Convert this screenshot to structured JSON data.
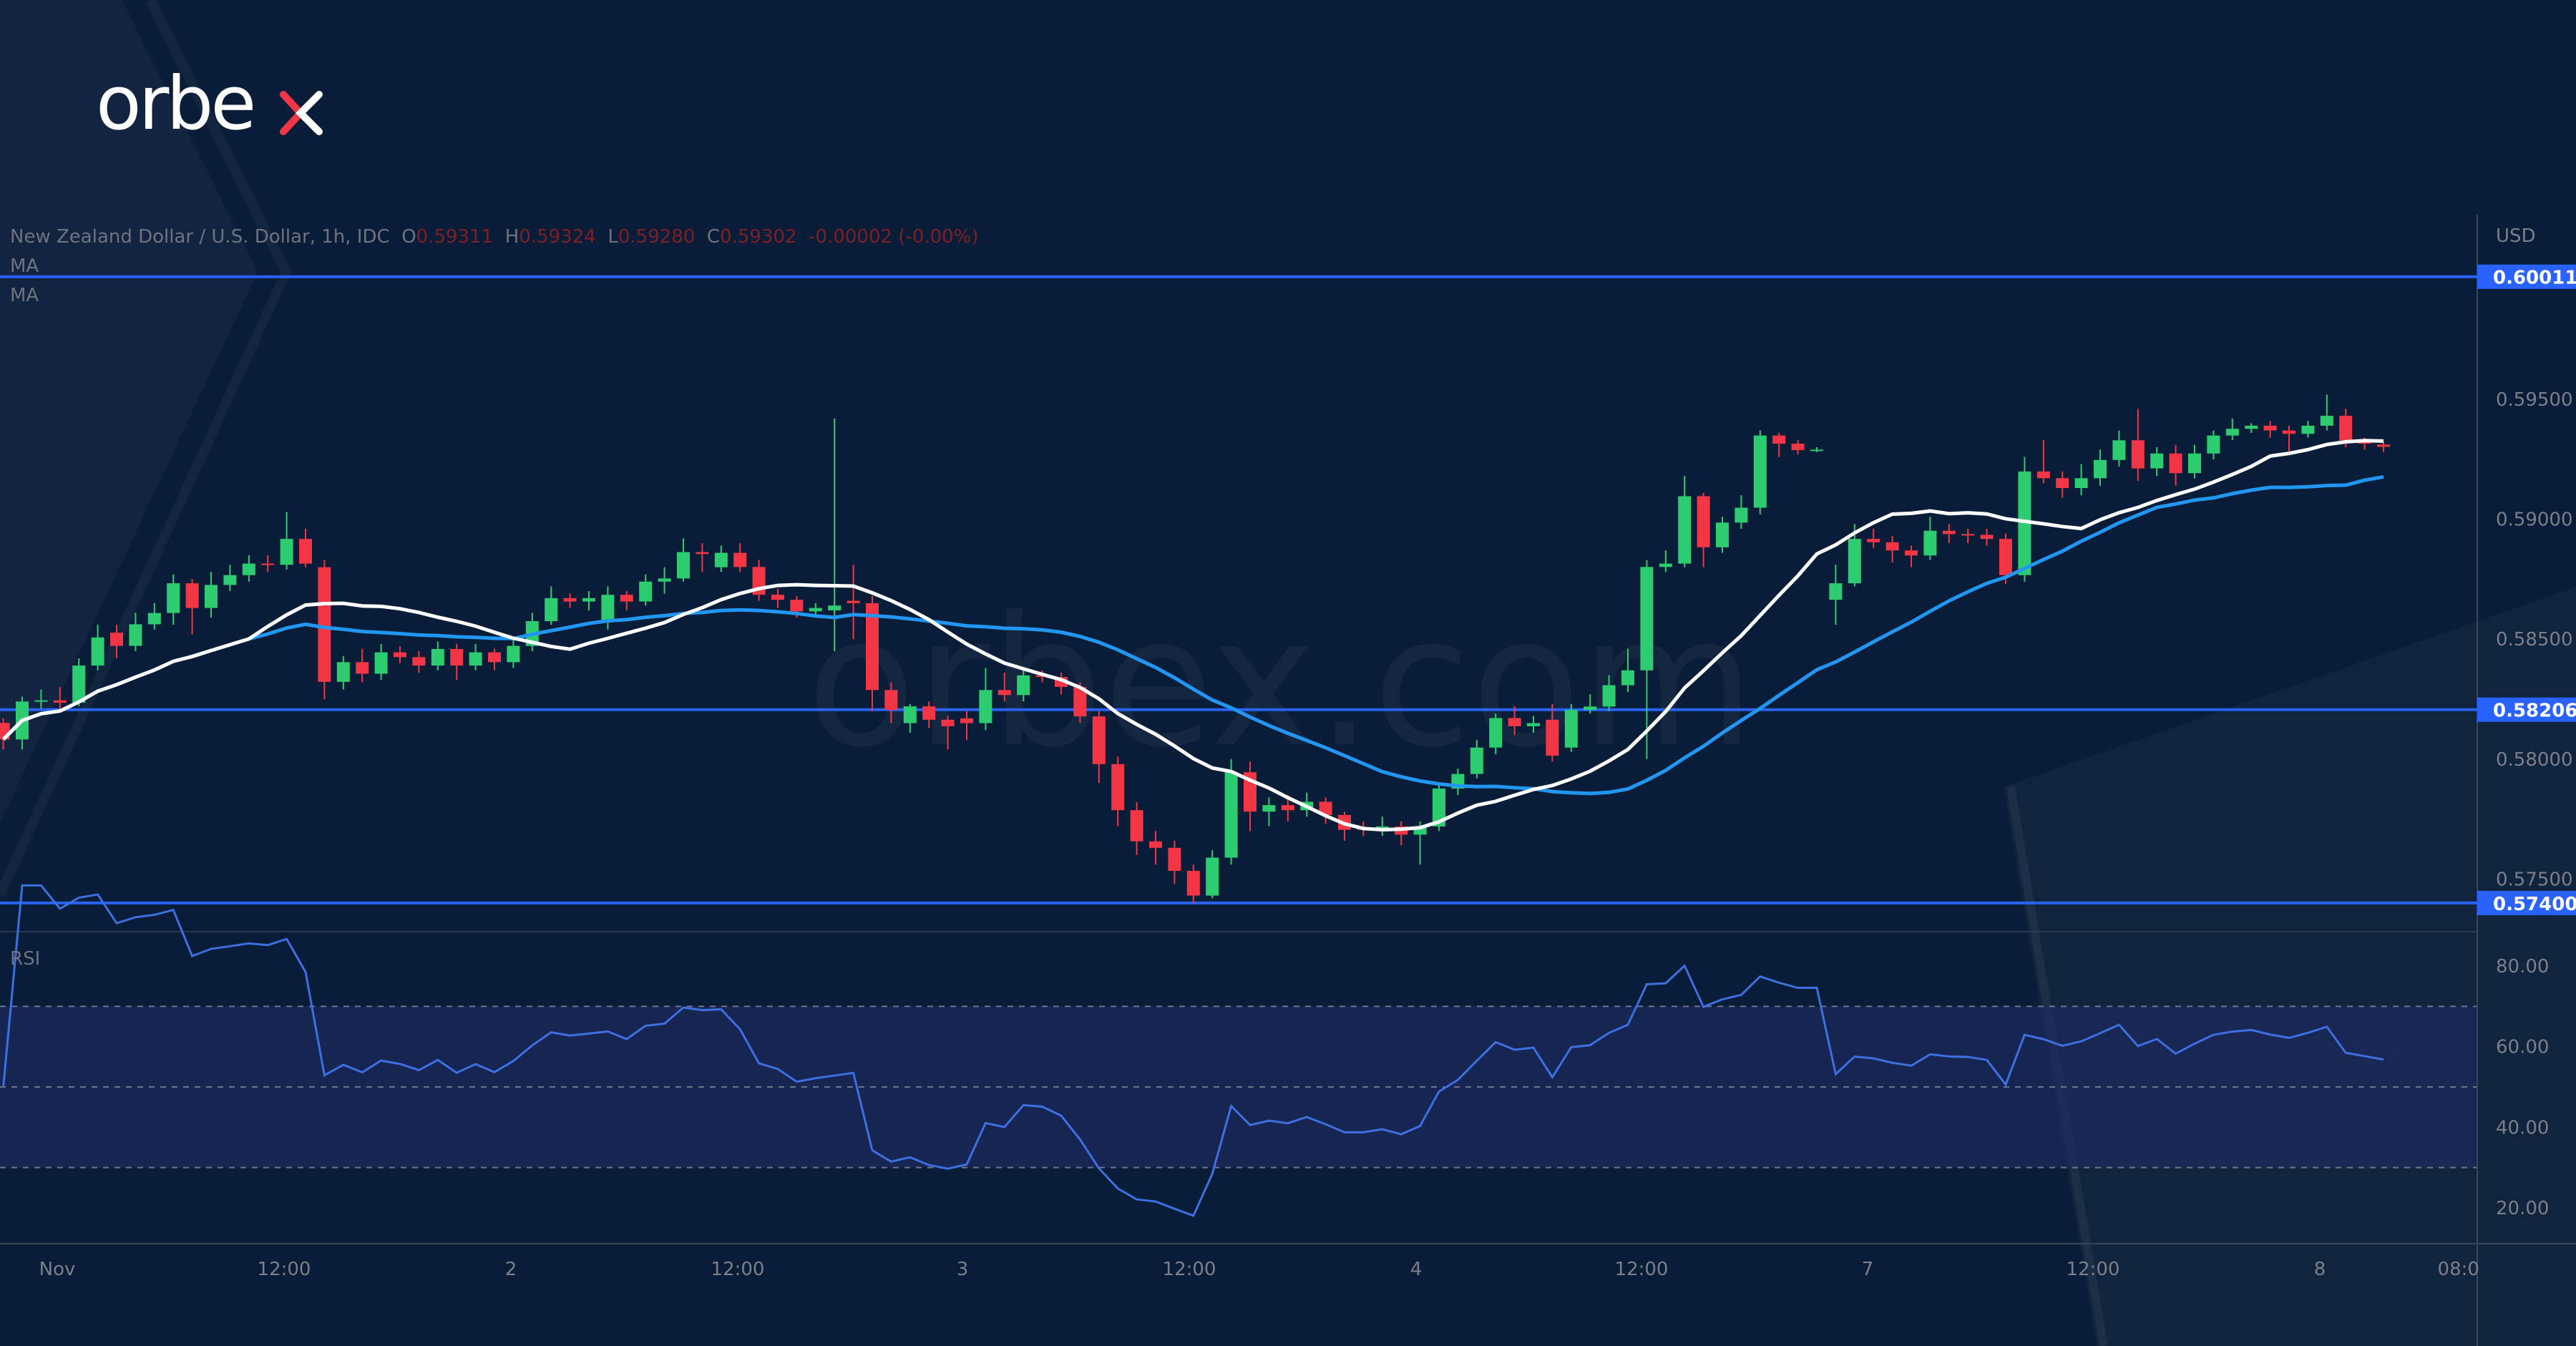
{
  "brand": {
    "logo_text": "orbex",
    "watermark": "orbex.com"
  },
  "legend": {
    "symbol": "New Zealand Dollar / U.S. Dollar, 1h, IDC",
    "open_label": "O",
    "open": "0.59311",
    "high_label": "H",
    "high": "0.59324",
    "low_label": "L",
    "low": "0.59280",
    "close_label": "C",
    "close": "0.59302",
    "change": "-0.00002 (-0.00%)",
    "ma1": "MA",
    "ma2": "MA"
  },
  "colors": {
    "background": "#0a1d38",
    "up": "#2ecc71",
    "down": "#f23645",
    "ma_fast": "#ffffff",
    "ma_slow": "#2196f3",
    "level": "#2962ff",
    "rsi": "#3d6fe0"
  },
  "chart_data": {
    "type": "candlestick",
    "timeframe": "1h",
    "currency": "USD",
    "ylim": [
      0.5735,
      0.6015
    ],
    "yticks": [
      "0.59500",
      "0.59000",
      "0.58500",
      "0.58000",
      "0.57500"
    ],
    "xticks": [
      "Nov",
      "12:00",
      "2",
      "12:00",
      "3",
      "12:00",
      "4",
      "12:00",
      "7",
      "12:00",
      "8",
      "08:00"
    ],
    "levels": [
      {
        "value": 0.60011,
        "label": "0.60011"
      },
      {
        "value": 0.58206,
        "label": "0.58206"
      },
      {
        "value": 0.574,
        "label": "0.57400"
      }
    ],
    "indicators": [
      "MA",
      "MA",
      "RSI"
    ],
    "ohlc": [
      [
        0.58151,
        0.5817,
        0.5804,
        0.58082
      ],
      [
        0.58082,
        0.5826,
        0.5804,
        0.5824
      ],
      [
        0.5824,
        0.5829,
        0.5821,
        0.58245
      ],
      [
        0.58245,
        0.583,
        0.582,
        0.58235
      ],
      [
        0.58235,
        0.5842,
        0.5822,
        0.5839
      ],
      [
        0.5839,
        0.5856,
        0.5837,
        0.58507
      ],
      [
        0.58527,
        0.5856,
        0.5842,
        0.58472
      ],
      [
        0.58472,
        0.5861,
        0.5845,
        0.58562
      ],
      [
        0.58562,
        0.5865,
        0.5854,
        0.58609
      ],
      [
        0.58609,
        0.5877,
        0.5856,
        0.58733
      ],
      [
        0.58733,
        0.5875,
        0.5852,
        0.5863
      ],
      [
        0.5863,
        0.5878,
        0.5859,
        0.58726
      ],
      [
        0.58726,
        0.5881,
        0.587,
        0.58767
      ],
      [
        0.58767,
        0.5885,
        0.5874,
        0.58815
      ],
      [
        0.58815,
        0.5885,
        0.5878,
        0.5881
      ],
      [
        0.5881,
        0.5903,
        0.5879,
        0.58918
      ],
      [
        0.58918,
        0.5896,
        0.588,
        0.58815
      ],
      [
        0.588,
        0.5883,
        0.5825,
        0.58322
      ],
      [
        0.58322,
        0.5843,
        0.5829,
        0.58404
      ],
      [
        0.58404,
        0.5846,
        0.5832,
        0.58356
      ],
      [
        0.58356,
        0.5848,
        0.5833,
        0.58445
      ],
      [
        0.58445,
        0.5847,
        0.584,
        0.58425
      ],
      [
        0.58425,
        0.5845,
        0.5836,
        0.5839
      ],
      [
        0.5839,
        0.5849,
        0.5837,
        0.58459
      ],
      [
        0.58459,
        0.5848,
        0.5833,
        0.5839
      ],
      [
        0.5839,
        0.5848,
        0.5837,
        0.58445
      ],
      [
        0.58445,
        0.5846,
        0.5837,
        0.58404
      ],
      [
        0.58404,
        0.585,
        0.5838,
        0.58472
      ],
      [
        0.58472,
        0.5861,
        0.5845,
        0.58575
      ],
      [
        0.58575,
        0.5872,
        0.5856,
        0.58671
      ],
      [
        0.58671,
        0.5869,
        0.5863,
        0.58657
      ],
      [
        0.58657,
        0.587,
        0.5862,
        0.58671
      ],
      [
        0.58575,
        0.5872,
        0.5854,
        0.58685
      ],
      [
        0.58685,
        0.587,
        0.5862,
        0.58657
      ],
      [
        0.58657,
        0.5877,
        0.5864,
        0.5874
      ],
      [
        0.5874,
        0.588,
        0.5869,
        0.58753
      ],
      [
        0.58753,
        0.5892,
        0.5874,
        0.58863
      ],
      [
        0.58863,
        0.589,
        0.5878,
        0.58855
      ],
      [
        0.588,
        0.5889,
        0.5878,
        0.5886
      ],
      [
        0.5886,
        0.589,
        0.5878,
        0.58801
      ],
      [
        0.58801,
        0.5883,
        0.5866,
        0.58685
      ],
      [
        0.58685,
        0.5871,
        0.5863,
        0.58664
      ],
      [
        0.58664,
        0.5868,
        0.5859,
        0.58616
      ],
      [
        0.58616,
        0.5865,
        0.586,
        0.5863
      ],
      [
        0.5862,
        0.5942,
        0.5845,
        0.5864
      ],
      [
        0.5866,
        0.5881,
        0.585,
        0.5865
      ],
      [
        0.5865,
        0.5868,
        0.582,
        0.58288
      ],
      [
        0.58288,
        0.5832,
        0.5815,
        0.58205
      ],
      [
        0.5815,
        0.5823,
        0.5811,
        0.5822
      ],
      [
        0.5822,
        0.5824,
        0.5813,
        0.58164
      ],
      [
        0.58164,
        0.5818,
        0.5804,
        0.58137
      ],
      [
        0.5817,
        0.582,
        0.5808,
        0.5815
      ],
      [
        0.5815,
        0.5838,
        0.5812,
        0.58288
      ],
      [
        0.58288,
        0.5836,
        0.5824,
        0.58267
      ],
      [
        0.58267,
        0.5838,
        0.5824,
        0.58349
      ],
      [
        0.58349,
        0.5837,
        0.5832,
        0.58342
      ],
      [
        0.58342,
        0.5836,
        0.5827,
        0.58301
      ],
      [
        0.58301,
        0.5832,
        0.5815,
        0.58178
      ],
      [
        0.58178,
        0.582,
        0.579,
        0.57979
      ],
      [
        0.57979,
        0.5801,
        0.5772,
        0.57787
      ],
      [
        0.57787,
        0.5782,
        0.576,
        0.57657
      ],
      [
        0.57657,
        0.577,
        0.5756,
        0.5763
      ],
      [
        0.5763,
        0.5766,
        0.5748,
        0.57534
      ],
      [
        0.57534,
        0.5756,
        0.574,
        0.57431
      ],
      [
        0.57431,
        0.5762,
        0.5742,
        0.57589
      ],
      [
        0.57589,
        0.58,
        0.5756,
        0.57945
      ],
      [
        0.57945,
        0.5799,
        0.577,
        0.57781
      ],
      [
        0.57781,
        0.5784,
        0.5772,
        0.57808
      ],
      [
        0.57808,
        0.5785,
        0.5774,
        0.57787
      ],
      [
        0.57787,
        0.5786,
        0.5776,
        0.57822
      ],
      [
        0.57822,
        0.5784,
        0.5773,
        0.57767
      ],
      [
        0.57767,
        0.5778,
        0.5766,
        0.57705
      ],
      [
        0.57715,
        0.5774,
        0.5768,
        0.57705
      ],
      [
        0.57705,
        0.5776,
        0.5768,
        0.57719
      ],
      [
        0.57719,
        0.5774,
        0.5764,
        0.57685
      ],
      [
        0.57685,
        0.5774,
        0.5756,
        0.57719
      ],
      [
        0.57719,
        0.579,
        0.577,
        0.57877
      ],
      [
        0.57877,
        0.5796,
        0.5785,
        0.57938
      ],
      [
        0.57938,
        0.5808,
        0.5792,
        0.58048
      ],
      [
        0.58048,
        0.5819,
        0.5802,
        0.58171
      ],
      [
        0.58171,
        0.5822,
        0.581,
        0.58137
      ],
      [
        0.58137,
        0.5818,
        0.5811,
        0.5815
      ],
      [
        0.58164,
        0.5823,
        0.5799,
        0.58014
      ],
      [
        0.58048,
        0.5823,
        0.5803,
        0.58205
      ],
      [
        0.58205,
        0.5827,
        0.5819,
        0.58219
      ],
      [
        0.58219,
        0.5835,
        0.582,
        0.58308
      ],
      [
        0.58308,
        0.5846,
        0.5828,
        0.5837
      ],
      [
        0.5837,
        0.5883,
        0.58,
        0.58801
      ],
      [
        0.58801,
        0.5887,
        0.5878,
        0.58815
      ],
      [
        0.58815,
        0.5918,
        0.588,
        0.59096
      ],
      [
        0.59096,
        0.5911,
        0.588,
        0.58883
      ],
      [
        0.58883,
        0.5901,
        0.5886,
        0.58986
      ],
      [
        0.58986,
        0.591,
        0.5896,
        0.59048
      ],
      [
        0.59048,
        0.5937,
        0.5902,
        0.59349
      ],
      [
        0.59349,
        0.5936,
        0.5926,
        0.59315
      ],
      [
        0.59315,
        0.5933,
        0.5927,
        0.59288
      ],
      [
        0.59288,
        0.593,
        0.5928,
        0.5929
      ],
      [
        0.58664,
        0.5881,
        0.5856,
        0.58733
      ],
      [
        0.58733,
        0.5898,
        0.5872,
        0.58918
      ],
      [
        0.58918,
        0.5896,
        0.5888,
        0.58904
      ],
      [
        0.58904,
        0.5893,
        0.5882,
        0.5887
      ],
      [
        0.5887,
        0.5889,
        0.588,
        0.58849
      ],
      [
        0.58849,
        0.5901,
        0.5883,
        0.58952
      ],
      [
        0.58952,
        0.5898,
        0.589,
        0.58938
      ],
      [
        0.58938,
        0.5896,
        0.589,
        0.58935
      ],
      [
        0.58935,
        0.5896,
        0.5889,
        0.58918
      ],
      [
        0.58918,
        0.5894,
        0.5873,
        0.58767
      ],
      [
        0.58767,
        0.5926,
        0.5874,
        0.59199
      ],
      [
        0.59199,
        0.5933,
        0.5915,
        0.59171
      ],
      [
        0.59171,
        0.592,
        0.5909,
        0.5913
      ],
      [
        0.5913,
        0.5923,
        0.591,
        0.59171
      ],
      [
        0.59171,
        0.5929,
        0.5914,
        0.59247
      ],
      [
        0.59247,
        0.5937,
        0.5922,
        0.59329
      ],
      [
        0.59329,
        0.5946,
        0.5916,
        0.59212
      ],
      [
        0.59212,
        0.593,
        0.5918,
        0.59274
      ],
      [
        0.59274,
        0.5931,
        0.5914,
        0.59192
      ],
      [
        0.59192,
        0.5931,
        0.5917,
        0.59274
      ],
      [
        0.59274,
        0.5937,
        0.5925,
        0.59349
      ],
      [
        0.59349,
        0.5942,
        0.5933,
        0.59377
      ],
      [
        0.59377,
        0.594,
        0.5936,
        0.5939
      ],
      [
        0.5939,
        0.5941,
        0.5934,
        0.5937
      ],
      [
        0.5937,
        0.5939,
        0.5927,
        0.59356
      ],
      [
        0.59356,
        0.5941,
        0.5934,
        0.5939
      ],
      [
        0.5939,
        0.5952,
        0.5937,
        0.59431
      ],
      [
        0.59431,
        0.5946,
        0.593,
        0.59329
      ],
      [
        0.59329,
        0.5934,
        0.5929,
        0.59315
      ],
      [
        0.59311,
        0.59324,
        0.5928,
        0.59302
      ]
    ],
    "rsi": {
      "label": "RSI",
      "yticks": [
        "80.00",
        "60.00",
        "40.00",
        "20.00"
      ],
      "upper": 70,
      "middle": 50,
      "lower": 30,
      "ylim": [
        10,
        90
      ]
    }
  }
}
